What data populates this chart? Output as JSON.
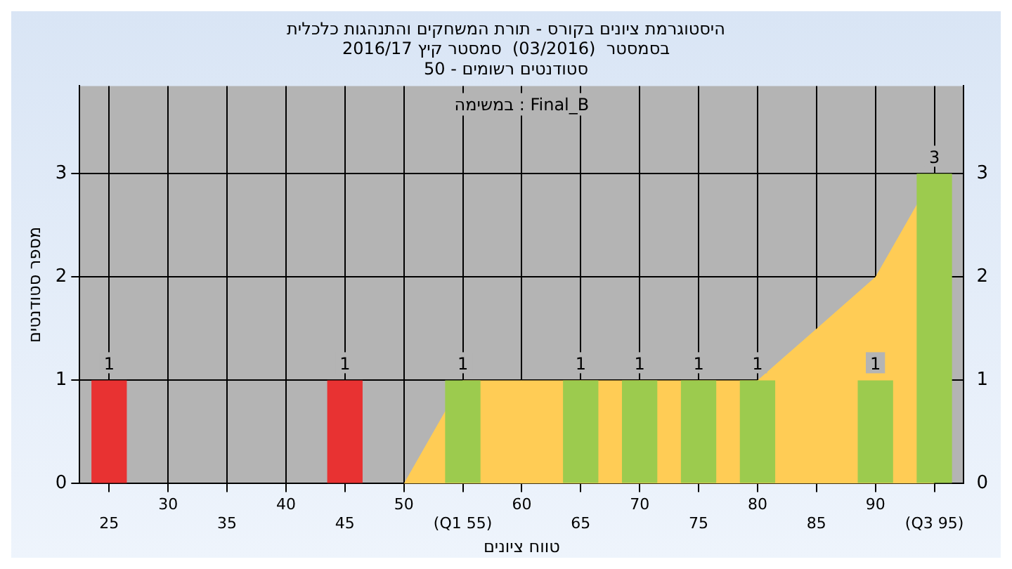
{
  "chart_data": {
    "type": "bar",
    "title": "היסטוגרמת ציונים בקורס - תורת המשחקים והתנהגות כלכלית",
    "subtitle": "בסמסטר  (03/2016)  סמסטר קיץ 2016/17\nסטודנטים רשומים - 50",
    "annotations": [
      "במשימה : Final_B"
    ],
    "xlabel": "טווח ציונים",
    "ylabel": "מספר סטודנטים",
    "categories": [
      "25",
      "30",
      "35",
      "40",
      "45",
      "50",
      "(Q1 55)",
      "60",
      "65",
      "70",
      "75",
      "80",
      "85",
      "90",
      "(Q3 95)"
    ],
    "series": [
      {
        "type": "area",
        "color": "#ffcc55",
        "values": [
          null,
          null,
          null,
          null,
          null,
          0,
          1,
          1,
          1,
          1,
          1,
          1,
          1.5,
          2,
          3
        ]
      },
      {
        "colors": [
          "#e83232",
          "#e83232",
          "#e83232",
          "#e83232",
          "#e83232",
          "#e83232",
          "#9ccb4e",
          "#9ccb4e",
          "#9ccb4e",
          "#9ccb4e",
          "#9ccb4e",
          "#9ccb4e",
          "#9ccb4e",
          "#9ccb4e",
          "#9ccb4e"
        ],
        "values": [
          1,
          0,
          0,
          0,
          1,
          0,
          1,
          0,
          1,
          1,
          1,
          1,
          0,
          1,
          3
        ],
        "value_labels": [
          "1",
          null,
          null,
          null,
          "1",
          null,
          "1",
          null,
          "1",
          "1",
          "1",
          "1",
          null,
          "1",
          "3"
        ]
      }
    ],
    "ylim": [
      0,
      3.85
    ],
    "yticks": [
      0,
      1,
      2,
      3
    ],
    "y2lim": [
      0,
      3.85
    ],
    "y2ticks": [
      0,
      1,
      2,
      3
    ],
    "grid": true,
    "legend": false
  }
}
